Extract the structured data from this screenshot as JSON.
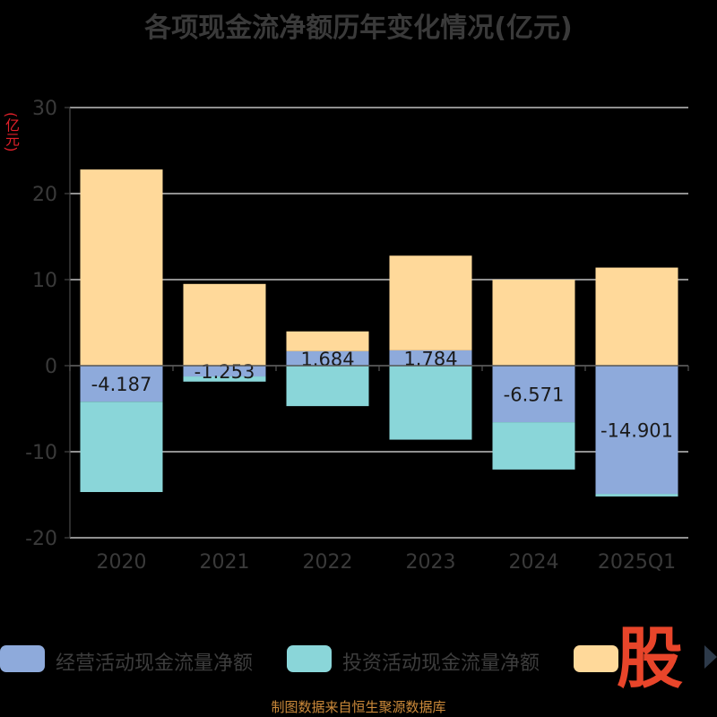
{
  "chart_data": {
    "type": "bar",
    "stacked": true,
    "title": "各项现金流净额历年变化情况(亿元)",
    "ylabel": "(亿元)",
    "categories": [
      "2020",
      "2021",
      "2022",
      "2023",
      "2024",
      "2025Q1"
    ],
    "ylim": [
      -20,
      30
    ],
    "yticks": [
      30,
      20,
      10,
      0,
      -10,
      -20
    ],
    "grid": true,
    "series": [
      {
        "name": "经营活动现金流量净额",
        "color": "#8eaadb",
        "values": [
          -4.187,
          -1.253,
          1.684,
          1.784,
          -6.571,
          -14.901
        ],
        "labels": [
          "-4.187",
          "-1.253",
          "1.684",
          "1.784",
          "-6.571",
          "-14.901"
        ]
      },
      {
        "name": "投资活动现金流量净额",
        "color": "#8ad6d9",
        "values": [
          -10.5,
          -0.6,
          -4.7,
          -8.6,
          -5.5,
          -0.3
        ]
      },
      {
        "name": "",
        "color": "#ffd99a",
        "values": [
          22.8,
          9.5,
          2.3,
          11.0,
          10.0,
          11.4
        ]
      }
    ]
  },
  "legend_next_icon": "triangle-right-icon",
  "watermark_text": "股",
  "source_note": "制图数据来自恒生聚源数据库"
}
